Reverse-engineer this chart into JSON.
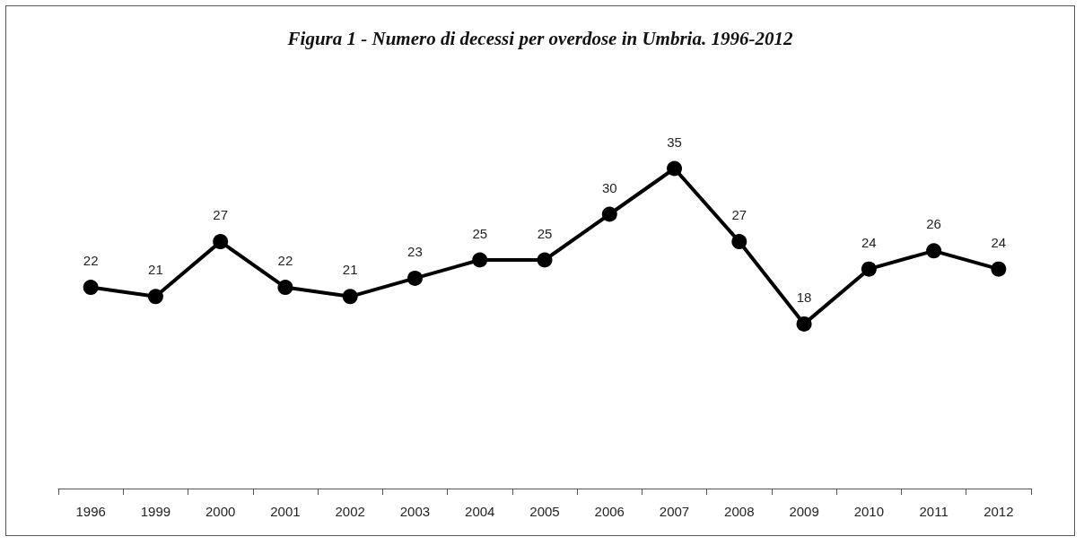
{
  "chart_data": {
    "type": "line",
    "title": "Figura 1 - Numero di decessi per overdose in Umbria. 1996-2012",
    "categories": [
      "1996",
      "1999",
      "2000",
      "2001",
      "2002",
      "2003",
      "2004",
      "2005",
      "2006",
      "2007",
      "2008",
      "2009",
      "2010",
      "2011",
      "2012"
    ],
    "series": [
      {
        "color": "#000000",
        "values": [
          22,
          21,
          27,
          22,
          21,
          23,
          25,
          25,
          30,
          35,
          27,
          18,
          24,
          26,
          24
        ]
      }
    ],
    "tick_labels": "x",
    "data_labels": true,
    "marker": "circle",
    "line_style": "solid"
  }
}
